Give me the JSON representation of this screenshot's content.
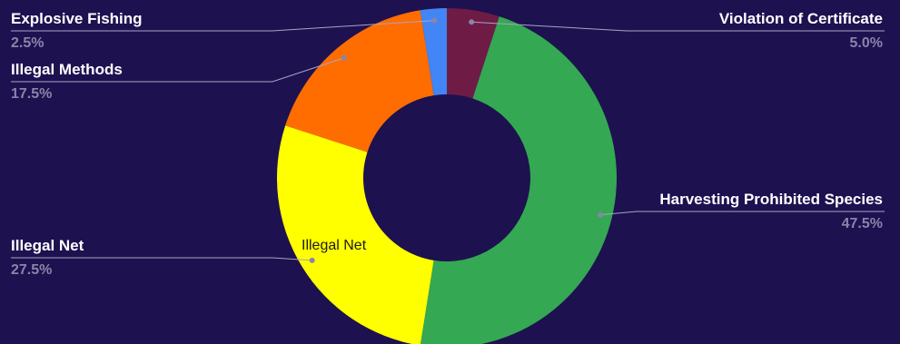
{
  "chart_data": {
    "type": "pie",
    "title": "",
    "slices": [
      {
        "label": "Violation of Certificate",
        "value": 5.0,
        "percent_text": "5.0%",
        "color": "#6e1c46"
      },
      {
        "label": "Harvesting Prohibited Species",
        "value": 47.5,
        "percent_text": "47.5%",
        "color": "#34a853"
      },
      {
        "label": "Illegal Net",
        "value": 27.5,
        "percent_text": "27.5%",
        "color": "#ffff00"
      },
      {
        "label": "Illegal Methods",
        "value": 17.5,
        "percent_text": "17.5%",
        "color": "#ff6d00"
      },
      {
        "label": "Explosive Fishing",
        "value": 2.5,
        "percent_text": "2.5%",
        "color": "#4285f4"
      }
    ],
    "inner_label": "Illegal Net",
    "legend": "none"
  }
}
